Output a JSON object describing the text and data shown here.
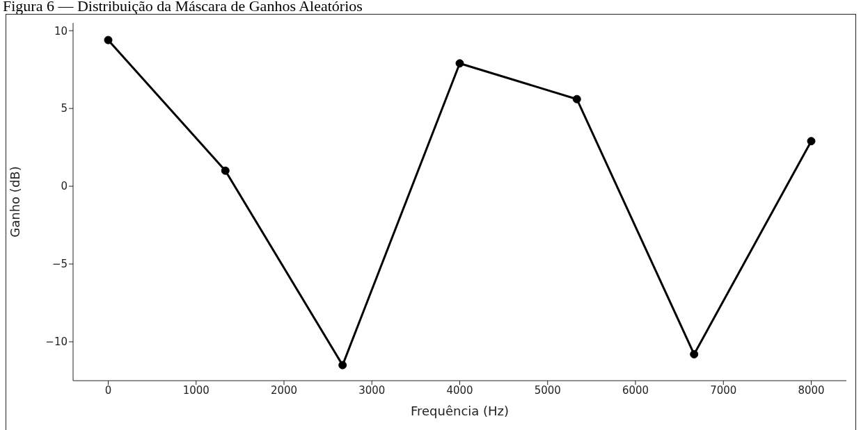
{
  "chart_data": {
    "type": "line",
    "title": "Figura 6 — Distribuição da Máscara de Ganhos Aleatórios",
    "xlabel": "Frequência (Hz)",
    "ylabel": "Ganho (dB)",
    "x": [
      0,
      1333,
      2667,
      4000,
      5333,
      6667,
      8000
    ],
    "series": [
      {
        "color": "#000000",
        "values": [
          9.4,
          1.0,
          -11.5,
          7.9,
          5.6,
          -10.8,
          2.9
        ]
      }
    ],
    "xlim": [
      -400,
      8400
    ],
    "xticks": [
      0,
      1000,
      2000,
      3000,
      4000,
      5000,
      6000,
      7000,
      8000
    ],
    "ylim": [
      -12.5,
      10.5
    ],
    "yticks": [
      {
        "value": -10,
        "label": "−10"
      },
      {
        "value": -5,
        "label": "−5"
      },
      0,
      5,
      10
    ],
    "grid": false,
    "legend": false,
    "marker": "circle",
    "line_style": "solid"
  }
}
